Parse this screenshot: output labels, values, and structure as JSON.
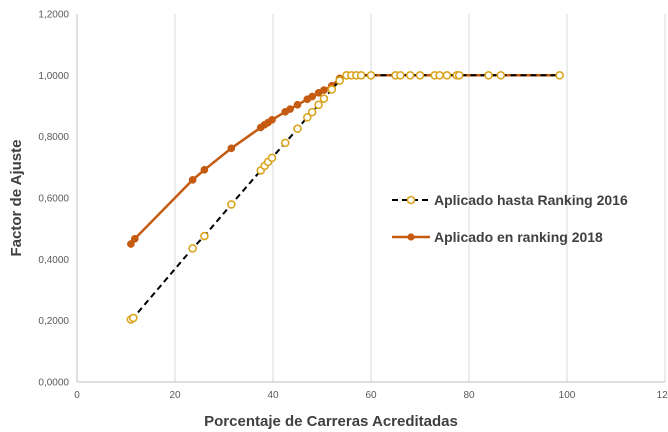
{
  "chart_data": {
    "type": "scatter",
    "xlabel": "Porcentaje de Carreras Acreditadas",
    "ylabel": "Factor de Ajuste",
    "xlim": [
      0,
      120
    ],
    "ylim": [
      0,
      1.2
    ],
    "x_ticks": [
      "0",
      "20",
      "40",
      "60",
      "80",
      "100",
      "120"
    ],
    "y_ticks": [
      "0,0000",
      "0,2000",
      "0,4000",
      "0,6000",
      "0,8000",
      "1,0000",
      "1,2000"
    ],
    "grid": "vertical",
    "legend": "right",
    "series": [
      {
        "name": "Aplicado hasta Ranking 2016",
        "color": "#DAA520",
        "line": "dashed",
        "marker": "circle-open",
        "points": [
          [
            11.0,
            0.204
          ],
          [
            11.5,
            0.209
          ],
          [
            23.6,
            0.436
          ],
          [
            26.0,
            0.476
          ],
          [
            31.5,
            0.579
          ],
          [
            37.5,
            0.69
          ],
          [
            38.3,
            0.705
          ],
          [
            39.0,
            0.718
          ],
          [
            39.8,
            0.731
          ],
          [
            42.5,
            0.78
          ],
          [
            45.0,
            0.826
          ],
          [
            47.0,
            0.863
          ],
          [
            48.0,
            0.88
          ],
          [
            49.3,
            0.904
          ],
          [
            50.4,
            0.924
          ],
          [
            52.0,
            0.954
          ],
          [
            53.6,
            0.983
          ],
          [
            55.0,
            1.0
          ],
          [
            56.0,
            1.0
          ],
          [
            57.0,
            1.0
          ],
          [
            58.0,
            1.0
          ],
          [
            60.0,
            1.0
          ],
          [
            65.0,
            1.0
          ],
          [
            66.0,
            1.0
          ],
          [
            68.0,
            1.0
          ],
          [
            70.0,
            1.0
          ],
          [
            73.0,
            1.0
          ],
          [
            74.0,
            1.0
          ],
          [
            75.5,
            1.0
          ],
          [
            77.5,
            1.0
          ],
          [
            78.0,
            1.0
          ],
          [
            84.0,
            1.0
          ],
          [
            86.5,
            1.0
          ],
          [
            98.5,
            1.0
          ]
        ]
      },
      {
        "name": "Aplicado en ranking 2018",
        "color": "#C55A11",
        "line": "solid",
        "marker": "circle-filled",
        "points": [
          [
            11.0,
            0.45
          ],
          [
            11.8,
            0.467
          ],
          [
            23.6,
            0.659
          ],
          [
            26.0,
            0.692
          ],
          [
            31.5,
            0.762
          ],
          [
            37.5,
            0.83
          ],
          [
            38.3,
            0.839
          ],
          [
            39.0,
            0.846
          ],
          [
            39.8,
            0.855
          ],
          [
            42.5,
            0.881
          ],
          [
            43.5,
            0.89
          ],
          [
            45.0,
            0.904
          ],
          [
            47.0,
            0.922
          ],
          [
            48.0,
            0.931
          ],
          [
            49.3,
            0.943
          ],
          [
            50.4,
            0.952
          ],
          [
            52.0,
            0.966
          ],
          [
            53.6,
            0.99
          ],
          [
            55.0,
            1.0
          ],
          [
            56.0,
            1.0
          ],
          [
            57.0,
            1.0
          ],
          [
            58.0,
            1.0
          ],
          [
            60.0,
            1.0
          ],
          [
            65.0,
            1.0
          ],
          [
            66.0,
            1.0
          ],
          [
            68.0,
            1.0
          ],
          [
            70.0,
            1.0
          ],
          [
            73.0,
            1.0
          ],
          [
            74.0,
            1.0
          ],
          [
            75.5,
            1.0
          ],
          [
            77.5,
            1.0
          ],
          [
            78.0,
            1.0
          ],
          [
            84.0,
            1.0
          ],
          [
            86.5,
            1.0
          ],
          [
            98.5,
            1.0
          ]
        ]
      }
    ]
  }
}
